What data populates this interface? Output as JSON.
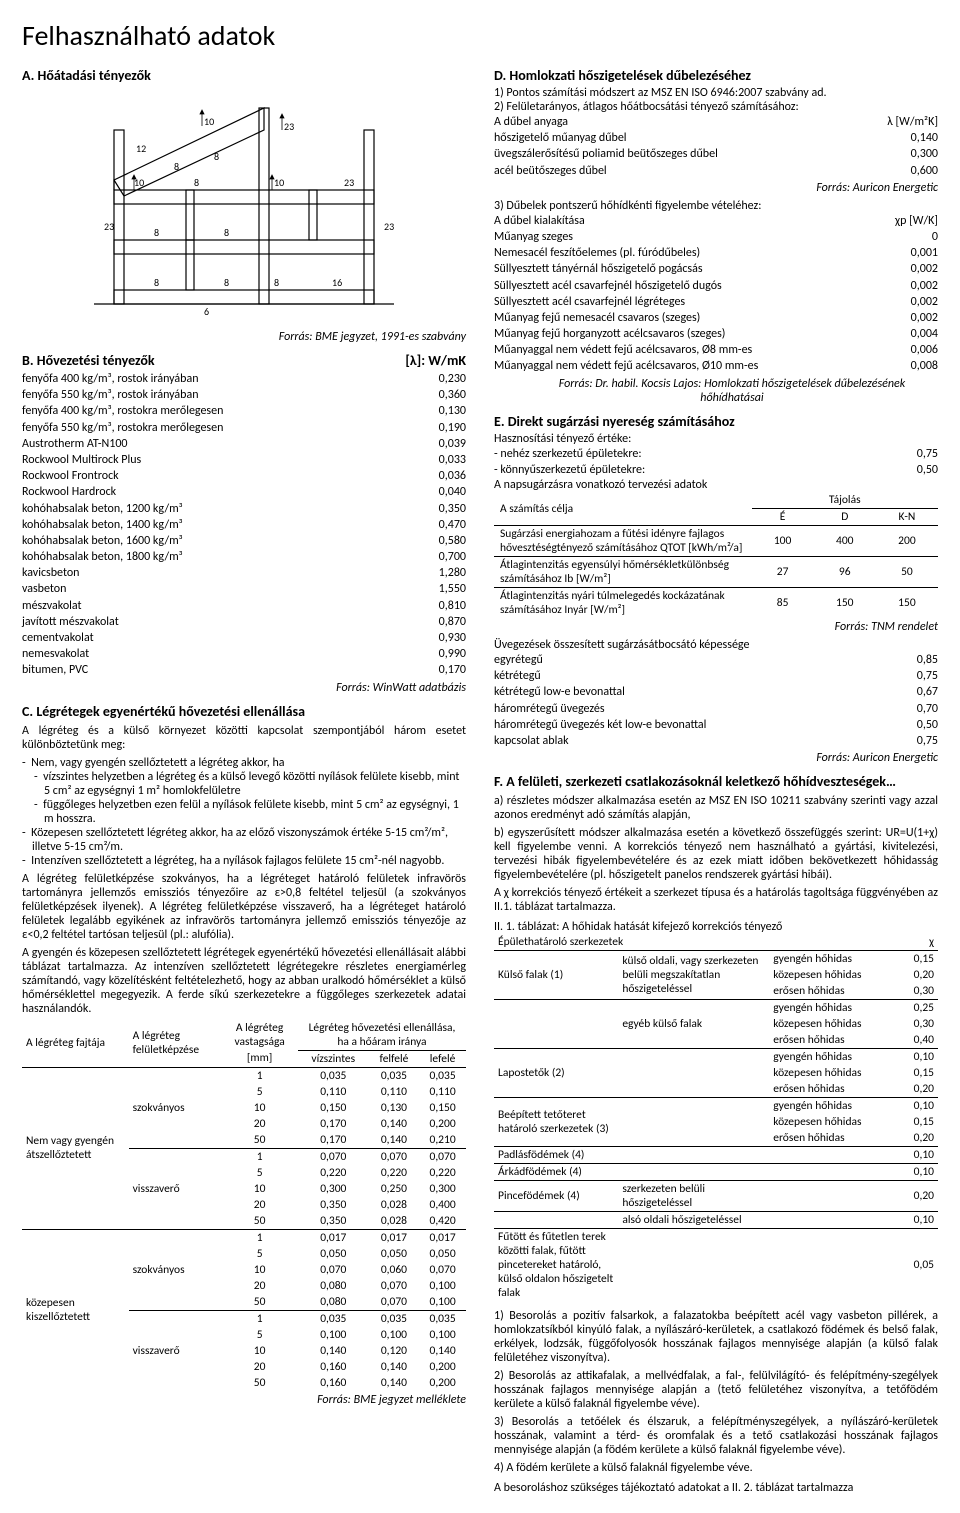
{
  "title": "Felhasználható adatok",
  "sectionA": {
    "heading": "A.  Hőátadási tényezők",
    "source": "Forrás: BME jegyzet, 1991-es szabvány",
    "diagram_labels": [
      "12",
      "8",
      "8",
      "23",
      "10",
      "23",
      "10",
      "8",
      "10",
      "23",
      "8",
      "8",
      "23",
      "8",
      "8",
      "6",
      "8",
      "16"
    ]
  },
  "sectionB": {
    "heading": "B.  Hővezetési tényezők",
    "unit": "[λ]: W/mK",
    "rows": [
      {
        "l": "fenyőfa 400 kg/m³, rostok irányában",
        "v": "0,230"
      },
      {
        "l": "fenyőfa 550 kg/m³, rostok irányában",
        "v": "0,360"
      },
      {
        "l": "fenyőfa 400 kg/m³, rostokra merőlegesen",
        "v": "0,130"
      },
      {
        "l": "fenyőfa 550 kg/m³, rostokra merőlegesen",
        "v": "0,190"
      },
      {
        "l": "Austrotherm AT-N100",
        "v": "0,039"
      },
      {
        "l": "Rockwool Multirock Plus",
        "v": "0,033"
      },
      {
        "l": "Rockwool Frontrock",
        "v": "0,036"
      },
      {
        "l": "Rockwool Hardrock",
        "v": "0,040"
      },
      {
        "l": "kohóhabsalak beton, 1200 kg/m³",
        "v": "0,350"
      },
      {
        "l": "kohóhabsalak beton, 1400 kg/m³",
        "v": "0,470"
      },
      {
        "l": "kohóhabsalak beton, 1600 kg/m³",
        "v": "0,580"
      },
      {
        "l": "kohóhabsalak beton, 1800 kg/m³",
        "v": "0,700"
      },
      {
        "l": "kavicsbeton",
        "v": "1,280"
      },
      {
        "l": "vasbeton",
        "v": "1,550"
      },
      {
        "l": "mészvakolat",
        "v": "0,810"
      },
      {
        "l": "javított mészvakolat",
        "v": "0,870"
      },
      {
        "l": "cementvakolat",
        "v": "0,930"
      },
      {
        "l": "nemesvakolat",
        "v": "0,990"
      },
      {
        "l": "bitumen, PVC",
        "v": "0,170"
      }
    ],
    "source": "Forrás: WinWatt adatbázis"
  },
  "sectionC": {
    "heading": "C.  Légrétegek egyenértékű hővezetési ellenállása",
    "p1": "A légréteg és a külső környezet közötti kapcsolat szempontjából három esetet különböztetünk meg:",
    "bullets": [
      "Nem, vagy gyengén szellőztetett a légréteg akkor, ha",
      "vízszintes helyzetben a légréteg és a külső levegő közötti nyílások felülete kisebb, mint 5 cm² az egységnyi 1 m² homlokfelületre",
      "függőleges helyzetben ezen felül a nyílások felülete kisebb, mint 5 cm² az egységnyi, 1 m hosszra.",
      "Közepesen szellőztetett légréteg akkor, ha az előző viszonyszámok értéke 5-15 cm²/m², illetve 5-15 cm²/m.",
      "Intenzíven szellőztetett a légréteg, ha a nyílások fajlagos felülete 15 cm²-nél nagyobb."
    ],
    "p2": "A légréteg felületképzése szokványos, ha a légréteget határoló felületek infravörös tartományra jellemzős emissziós tényezőire az ε>0,8 feltétel teljesül (a szokványos felületképzések ilyenek). A légréteg felületképzése visszaverő, ha a légréteget határoló felületek legalább egyikének az infravörös tartományra jellemző emissziós tényezője az ε<0,2 feltétel tartósan teljesül (pl.: alufólia).",
    "p3": "A gyengén és közepesen szellőztetett légrétegek egyenértékű hővezetési ellenállásait alábbi táblázat tartalmazza. Az intenzíven szellőztetett légrétegekre részletes energiamérleg számítandó, vagy közelítésként feltételezhető, hogy az abban uralkodó hőmérséklet a külső hőmérséklettel megegyezik. A ferde síkú szerkezetekre a függőleges szerkezetek adatai használandók.",
    "table": {
      "head1": "A légréteg fajtája",
      "head2": "A légréteg felületképzése",
      "head3_a": "A légréteg vastagsága",
      "head3_b": "[mm]",
      "head4": "Légréteg hővezetési ellenállása, ha a hőáram iránya",
      "sub": [
        "vízszintes",
        "felfelé",
        "lefelé"
      ],
      "groups": [
        {
          "fajta": "Nem vagy gyengén átszellőztetett",
          "sub": [
            {
              "fk": "szokványos",
              "rows": [
                [
                  "1",
                  "0,035",
                  "0,035",
                  "0,035"
                ],
                [
                  "5",
                  "0,110",
                  "0,110",
                  "0,110"
                ],
                [
                  "10",
                  "0,150",
                  "0,130",
                  "0,150"
                ],
                [
                  "20",
                  "0,170",
                  "0,140",
                  "0,200"
                ],
                [
                  "50",
                  "0,170",
                  "0,140",
                  "0,210"
                ]
              ]
            },
            {
              "fk": "visszaverő",
              "rows": [
                [
                  "1",
                  "0,070",
                  "0,070",
                  "0,070"
                ],
                [
                  "5",
                  "0,220",
                  "0,220",
                  "0,220"
                ],
                [
                  "10",
                  "0,300",
                  "0,250",
                  "0,300"
                ],
                [
                  "20",
                  "0,350",
                  "0,028",
                  "0,400"
                ],
                [
                  "50",
                  "0,350",
                  "0,028",
                  "0,420"
                ]
              ]
            }
          ]
        },
        {
          "fajta": "közepesen kiszellőztetett",
          "sub": [
            {
              "fk": "szokványos",
              "rows": [
                [
                  "1",
                  "0,017",
                  "0,017",
                  "0,017"
                ],
                [
                  "5",
                  "0,050",
                  "0,050",
                  "0,050"
                ],
                [
                  "10",
                  "0,070",
                  "0,060",
                  "0,070"
                ],
                [
                  "20",
                  "0,080",
                  "0,070",
                  "0,100"
                ],
                [
                  "50",
                  "0,080",
                  "0,070",
                  "0,100"
                ]
              ]
            },
            {
              "fk": "visszaverő",
              "rows": [
                [
                  "1",
                  "0,035",
                  "0,035",
                  "0,035"
                ],
                [
                  "5",
                  "0,100",
                  "0,100",
                  "0,100"
                ],
                [
                  "10",
                  "0,140",
                  "0,120",
                  "0,140"
                ],
                [
                  "20",
                  "0,160",
                  "0,140",
                  "0,200"
                ],
                [
                  "50",
                  "0,160",
                  "0,140",
                  "0,200"
                ]
              ]
            }
          ]
        }
      ]
    },
    "source": "Forrás: BME jegyzet melléklete"
  },
  "sectionD": {
    "heading": "D.  Homlokzati hőszigetelések dűbelezéséhez",
    "l1": "1) Pontos számítási módszert az MSZ EN ISO 6946:2007 szabvány ad.",
    "l2": "2) Felületarányos, átlagos hőátbocsátási tényező számításához:",
    "row_head1": {
      "l": "A dűbel anyaga",
      "u": "λ [W/m²K]"
    },
    "rows1": [
      {
        "l": "hőszigetelő műanyag dűbel",
        "v": "0,140"
      },
      {
        "l": "üvegszálerősítésű poliamid beütőszeges dűbel",
        "v": "0,300"
      },
      {
        "l": "acél beütőszeges dűbel",
        "v": "0,600"
      }
    ],
    "src1": "Forrás: Auricon Energetic",
    "l3": "3) Dűbelek pontszerű hőhídkénti figyelembe vételéhez:",
    "row_head2": {
      "l": "A dűbel kialakítása",
      "u": "χp [W/K]"
    },
    "rows2": [
      {
        "l": "Műanyag szeges",
        "v": "0"
      },
      {
        "l": "Nemesacél feszítőelemes (pl. fúródűbeles)",
        "v": "0,001"
      },
      {
        "l": "Süllyesztett tányérnál hőszigetelő pogácsás",
        "v": "0,002"
      },
      {
        "l": "Süllyesztett acél csavarfejnél hőszigetelő dugós",
        "v": "0,002"
      },
      {
        "l": "Süllyesztett acél csavarfejnél légréteges",
        "v": "0,002"
      },
      {
        "l": "Műanyag fejű nemesacél csavaros (szeges)",
        "v": "0,002"
      },
      {
        "l": "Műanyag fejű horganyzott acélcsavaros (szeges)",
        "v": "0,004"
      },
      {
        "l": "Műanyaggal nem védett fejű acélcsavaros, Ø8 mm-es",
        "v": "0,006"
      },
      {
        "l": "Műanyaggal nem védett fejű acélcsavaros, Ø10 mm-es",
        "v": "0,008"
      }
    ],
    "src2": "Forrás: Dr. habil. Kocsis Lajos: Homlokzati hőszigetelések dűbelezésének hőhídhatásai"
  },
  "sectionE": {
    "heading": "E.  Direkt sugárzási nyereség számításához",
    "l1": "Hasznosítási tényező értéke:",
    "rows1": [
      {
        "l": "- nehéz szerkezetű épületekre:",
        "v": "0,75"
      },
      {
        "l": "- könnyűszerkezetű épületekre:",
        "v": "0,50"
      }
    ],
    "l2": "A napsugárzásra vonatkozó tervezési adatok",
    "tajolas": {
      "head": [
        "A számítás célja",
        "Tájolás",
        "É",
        "D",
        "K-N"
      ],
      "rows": [
        {
          "l": "Sugárzási energiahozam a fűtési idényre fajlagos hővesztéségtényező számításához QTOT [kWh/m²/a]",
          "v": [
            "100",
            "400",
            "200"
          ]
        },
        {
          "l": "Átlagintenzitás egyensúlyi hőmérsékletkülönbség számításához Ib [W/m²]",
          "v": [
            "27",
            "96",
            "50"
          ]
        },
        {
          "l": "Átlagintenzitás nyári túlmelegedés kockázatának számításához Inyár [W/m²]",
          "v": [
            "85",
            "150",
            "150"
          ]
        }
      ]
    },
    "src1": "Forrás: TNM rendelet",
    "l3": "Üvegezések összesített sugárzásátbocsátó képessége",
    "rows2": [
      {
        "l": "egyrétegű",
        "v": "0,85"
      },
      {
        "l": "kétrétegű",
        "v": "0,75"
      },
      {
        "l": "kétrétegű low-e bevonattal",
        "v": "0,67"
      },
      {
        "l": "háromrétegű üvegezés",
        "v": "0,70"
      },
      {
        "l": "háromrétegű üvegezés két low-e bevonattal",
        "v": "0,50"
      },
      {
        "l": "kapcsolat ablak",
        "v": "0,75"
      }
    ],
    "src2": "Forrás: Auricon Energetic"
  },
  "sectionF": {
    "heading": "F.  A felületi, szerkezeti csatlakozásoknál keletkező hőhídveszteségek…",
    "p1": "a) részletes módszer alkalmazása esetén az MSZ EN ISO 10211 szabvány szerinti vagy azzal azonos eredményt adó számítás alapján,",
    "p2": "b) egyszerűsített módszer alkalmazása esetén a következő összefüggés szerint: UR=U(1+χ) kell figyelembe venni. A korrekciós tényező nem használható a gyártási, kivitelezési, tervezési hibák figyelembevételére és az ezek miatt időben bekövetkezett hőhidasság figyelembevételére (pl. hőszigetelt panelos rendszerek gyártási hibái).",
    "p3": "A χ korrekciós tényező értékeit a szerkezet típusa és a határolás tagoltsága függvényében az II.1. táblázat tartalmazza.",
    "tbl_caption": "II. 1. táblázat: A hőhidak hatását kifejező korrekciós tényező",
    "tbl_head": [
      "Épülethatároló szerkezetek",
      "",
      "χ"
    ],
    "tbl": [
      {
        "g": "Külső falak (1)",
        "s": "külső oldali, vagy szerkezeten belüli megszakítatlan hőszigeteléssel",
        "rows": [
          [
            "gyengén hőhidas",
            "0,15"
          ],
          [
            "közepesen hőhidas",
            "0,20"
          ],
          [
            "erősen hőhidas",
            "0,30"
          ]
        ]
      },
      {
        "g": "",
        "s": "egyéb külső falak",
        "rows": [
          [
            "gyengén hőhidas",
            "0,25"
          ],
          [
            "közepesen hőhidas",
            "0,30"
          ],
          [
            "erősen hőhidas",
            "0,40"
          ]
        ]
      },
      {
        "g": "Lapostetők (2)",
        "s": "",
        "rows": [
          [
            "gyengén hőhidas",
            "0,10"
          ],
          [
            "közepesen hőhidas",
            "0,15"
          ],
          [
            "erősen hőhidas",
            "0,20"
          ]
        ]
      },
      {
        "g": "Beépített tetőteret határoló szerkezetek (3)",
        "s": "",
        "rows": [
          [
            "gyengén hőhidas",
            "0,10"
          ],
          [
            "közepesen hőhidas",
            "0,15"
          ],
          [
            "erősen hőhidas",
            "0,20"
          ]
        ]
      },
      {
        "g": "Padlásfödémek (4)",
        "s": "",
        "rows": [
          [
            "",
            "0,10"
          ]
        ]
      },
      {
        "g": "Árkádfödémek (4)",
        "s": "",
        "rows": [
          [
            "",
            "0,10"
          ]
        ]
      },
      {
        "g": "Pincefödémek (4)",
        "s": "szerkezeten belüli hőszigeteléssel",
        "rows": [
          [
            "",
            "0,20"
          ]
        ]
      },
      {
        "g": "",
        "s": "alsó oldali hőszigeteléssel",
        "rows": [
          [
            "",
            "0,10"
          ]
        ]
      },
      {
        "g": "Fűtött és fűtetlen terek közötti falak, fűtött pincetereket határoló, külső oldalon hőszigetelt falak",
        "s": "",
        "rows": [
          [
            "",
            "0,05"
          ]
        ]
      }
    ],
    "foot": [
      "1) Besorolás a pozitív falsarkok, a falazatokba beépített acél vagy vasbeton pillérek, a homlokzatsíkból kinyúló falak, a nyílászáró-kerületek, a csatlakozó födémek és belső falak, erkélyek, lodzsák, függőfolyosók hosszának fajlagos mennyisége alapján (a külső falak felületéhez viszonyítva).",
      "2) Besorolás az attikafalak, a mellvédfalak, a fal-, felülvilágító- és felépítmény-szegélyek hosszának fajlagos mennyisége alapján a (tető felületéhez viszonyítva, a tetőfödém kerülete a külső falaknál figyelembe véve).",
      "3) Besorolás a tetőélek és élszaruk, a felépítményszegélyek, a nyílászáró-kerületek hosszának, valamint a térd- és oromfalak és a tető csatlakozási hosszának fajlagos mennyisége alapján (a födém kerülete a külső falaknál figyelembe véve).",
      "4) A födém kerülete a külső falaknál figyelembe véve."
    ],
    "last": "A besoroláshoz szükséges tájékoztató adatokat a II. 2. táblázat tartalmazza"
  }
}
